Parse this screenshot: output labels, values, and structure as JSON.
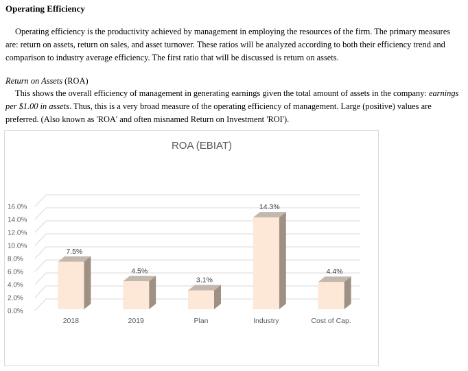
{
  "section_title": "Operating Efficiency",
  "paragraph1": "Operating efficiency is the productivity achieved by management in employing the resources of the firm.  The primary measures are:  return on assets, return on sales, and asset turnover.  These ratios will be analyzed according to both their efficiency trend and comparison to industry average efficiency.  The first ratio that will be discussed is return on assets.",
  "roa_heading": {
    "italic": "Return on Assets",
    "plain": " (ROA)"
  },
  "paragraph2": {
    "part1": "This shows the overall efficiency of management in generating earnings given the total amount of assets in the company: ",
    "italic": "earnings per $1.00 in assets",
    "part2": ".  Thus, this is a very broad measure of the operating efficiency of management. Large (positive) values are preferred.  (Also known as 'ROA' and often misnamed Return on Investment 'ROI')."
  },
  "chart_data": {
    "type": "bar",
    "title": "ROA  (EBIAT)",
    "categories": [
      "2018",
      "2019",
      "Plan",
      "Industry",
      "Cost of Cap."
    ],
    "values": [
      7.5,
      4.5,
      3.1,
      14.3,
      4.4
    ],
    "data_labels": [
      "7.5%",
      "4.5%",
      "3.1%",
      "14.3%",
      "4.4%"
    ],
    "y_ticks": [
      "0.0%",
      "2.0%",
      "4.0%",
      "6.0%",
      "8.0%",
      "10.0%",
      "12.0%",
      "14.0%",
      "16.0%"
    ],
    "ylim": [
      0,
      16
    ],
    "grid": true,
    "style": "3d-column",
    "colors": {
      "bar_front": "#fde8d8",
      "bar_side": "#9e9183",
      "bar_top": "#c2b8ad",
      "grid": "#d9d9d9",
      "text": "#595959"
    }
  }
}
